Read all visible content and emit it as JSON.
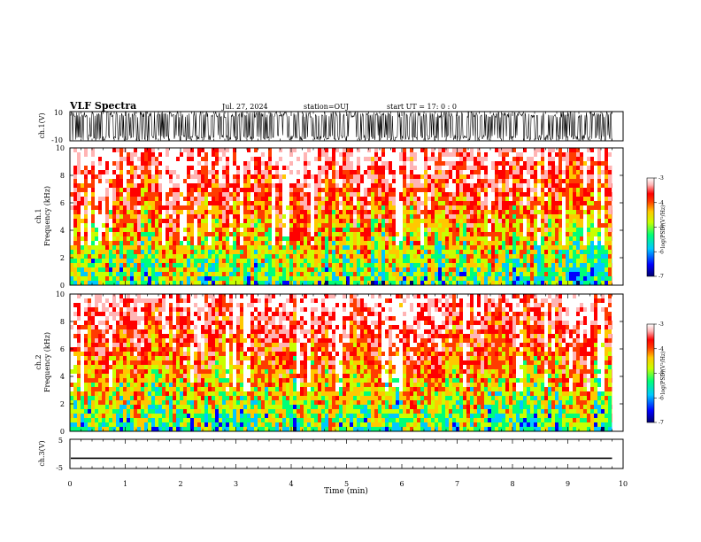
{
  "header": {
    "title": "VLF Spectra",
    "date": "Jul. 27, 2024",
    "station": "station=OUJ",
    "start_ut": "start UT =  17: 0  : 0"
  },
  "chart_data": [
    {
      "type": "line",
      "panel": "ch1-waveform",
      "ylabel": "ch.1(V)",
      "ylim": [
        -10,
        10
      ],
      "tick_labels": [
        "10",
        "-10"
      ],
      "xlim": [
        0,
        9.8
      ],
      "envelope": "saturated oscillation between about -10 and 10 V across the full record"
    },
    {
      "type": "heatmap",
      "panel": "ch1-spectrogram",
      "ylabel_top": "ch.1",
      "ylabel": "Frequency (kHz)",
      "ylim": [
        0,
        10
      ],
      "y_ticks": [
        0,
        2,
        4,
        6,
        8,
        10
      ],
      "xlim": [
        0,
        9.8
      ],
      "colorbar": {
        "label": "log(PSD)(V²/Hz)",
        "range": [
          -7,
          -3
        ],
        "ticks": [
          -3,
          -4,
          -5,
          -6,
          -7
        ]
      }
    },
    {
      "type": "heatmap",
      "panel": "ch2-spectrogram",
      "ylabel_top": "ch.2",
      "ylabel": "Frequency (kHz)",
      "ylim": [
        0,
        10
      ],
      "y_ticks": [
        0,
        2,
        4,
        6,
        8,
        10
      ],
      "xlim": [
        0,
        9.8
      ],
      "colorbar": {
        "label": "log(PSD)(V²/Hz)",
        "range": [
          -7,
          -3
        ],
        "ticks": [
          -3,
          -4,
          -5,
          -6,
          -7
        ]
      }
    },
    {
      "type": "line",
      "panel": "ch3-signal",
      "ylabel": "ch.3(V)",
      "ylim": [
        -5,
        5
      ],
      "tick_labels": [
        "5",
        "-5"
      ],
      "x": [
        0,
        9.8
      ],
      "y": [
        -1.5,
        -1.5
      ]
    }
  ],
  "xaxis": {
    "label": "Time (min)",
    "ticks": [
      "0",
      "1",
      "2",
      "3",
      "4",
      "5",
      "6",
      "7",
      "8",
      "9",
      "10"
    ],
    "range": [
      0,
      10
    ]
  },
  "colors": {
    "scale": [
      "#00006e",
      "#0000ff",
      "#00c8ff",
      "#00ff78",
      "#c8ff00",
      "#ffc800",
      "#ff3c00",
      "#ff0000",
      "#ffb4b4",
      "#ffffff"
    ]
  }
}
